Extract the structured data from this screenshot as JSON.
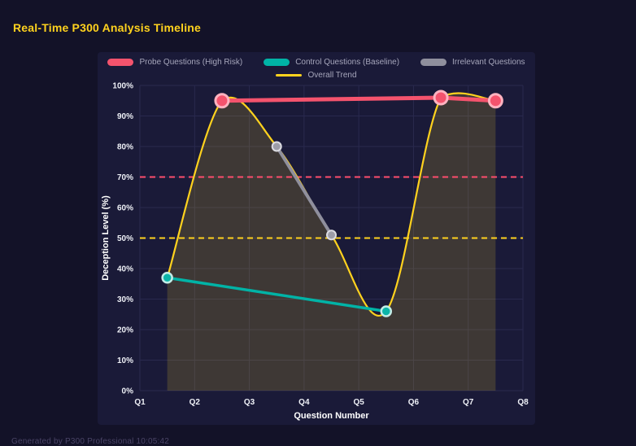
{
  "header": {
    "title": "Real-Time P300 Analysis Timeline"
  },
  "footer": {
    "text": "Generated by P300 Professional  10:05:42"
  },
  "chart_data": {
    "type": "line",
    "title": "Real-Time P300 Analysis Timeline",
    "xlabel": "Question Number",
    "ylabel": "Deception Level (%)",
    "x_range": [
      1,
      8
    ],
    "ylim": [
      0,
      100
    ],
    "grid": true,
    "legend_position": "top",
    "x_ticks": [
      {
        "value": 1,
        "label": "Q1"
      },
      {
        "value": 2,
        "label": "Q2"
      },
      {
        "value": 3,
        "label": "Q3"
      },
      {
        "value": 4,
        "label": "Q4"
      },
      {
        "value": 5,
        "label": "Q5"
      },
      {
        "value": 6,
        "label": "Q6"
      },
      {
        "value": 7,
        "label": "Q7"
      },
      {
        "value": 8,
        "label": "Q8"
      }
    ],
    "y_ticks": [
      {
        "value": 0,
        "label": "0%"
      },
      {
        "value": 10,
        "label": "10%"
      },
      {
        "value": 20,
        "label": "20%"
      },
      {
        "value": 30,
        "label": "30%"
      },
      {
        "value": 40,
        "label": "40%"
      },
      {
        "value": 50,
        "label": "50%"
      },
      {
        "value": 60,
        "label": "60%"
      },
      {
        "value": 70,
        "label": "70%"
      },
      {
        "value": 80,
        "label": "80%"
      },
      {
        "value": 90,
        "label": "90%"
      },
      {
        "value": 100,
        "label": "100%"
      }
    ],
    "colors": {
      "page": "#131228",
      "panel": "#1a1a38",
      "grid": "#29294e",
      "axis_text": "#eef0f6",
      "axis_title": "#ffffff",
      "title": "#ffd21e"
    },
    "legend_rows": [
      [
        0,
        1,
        2
      ],
      [
        3
      ]
    ],
    "legend": [
      {
        "label": "Probe Questions (High Risk)",
        "color": "#f4536d",
        "shape": "band"
      },
      {
        "label": "Control Questions (Baseline)",
        "color": "#00b3a6",
        "shape": "band"
      },
      {
        "label": "Irrelevant Questions",
        "color": "#8f8f9d",
        "shape": "band"
      },
      {
        "label": "Overall Trend",
        "color": "#ffd21e",
        "shape": "line"
      }
    ],
    "reference_lines": [
      {
        "value": 70,
        "color": "#ff4d6d",
        "style": "dashed"
      },
      {
        "value": 50,
        "color": "#ffd21e",
        "style": "dashed"
      }
    ],
    "series": [
      {
        "name": "Overall Trend",
        "color": "#ffd21e",
        "width": 2.2,
        "smooth": true,
        "area_fill": "rgba(246,205,40,0.17)",
        "points": [
          [
            1.5,
            37
          ],
          [
            2.5,
            95
          ],
          [
            3.5,
            80
          ],
          [
            4.5,
            51
          ],
          [
            5.5,
            26
          ],
          [
            6.5,
            96
          ],
          [
            7.5,
            95
          ]
        ]
      },
      {
        "name": "Irrelevant Questions",
        "color": "#8f8f9d",
        "width": 4,
        "smooth": false,
        "points": [
          [
            3.5,
            80
          ],
          [
            4.5,
            51
          ]
        ],
        "marker": {
          "r": 5.5,
          "fill": "#9d9da8",
          "stroke": "#dcdce2",
          "stroke_width": 2
        }
      },
      {
        "name": "Control Questions (Baseline)",
        "color": "#00b3a6",
        "width": 3.5,
        "smooth": false,
        "points": [
          [
            1.5,
            37
          ],
          [
            5.5,
            26
          ]
        ],
        "marker": {
          "r": 6,
          "fill": "#0bb5a8",
          "stroke": "#c2ece7",
          "stroke_width": 2.5
        }
      },
      {
        "name": "Probe Questions (High Risk)",
        "color": "#f4536d",
        "width": 5,
        "smooth": false,
        "points": [
          [
            2.5,
            95
          ],
          [
            6.5,
            96
          ],
          [
            7.5,
            95
          ]
        ],
        "marker": {
          "r": 8,
          "fill": "#f4536d",
          "stroke": "#ffb3c0",
          "stroke_width": 3
        }
      }
    ]
  }
}
